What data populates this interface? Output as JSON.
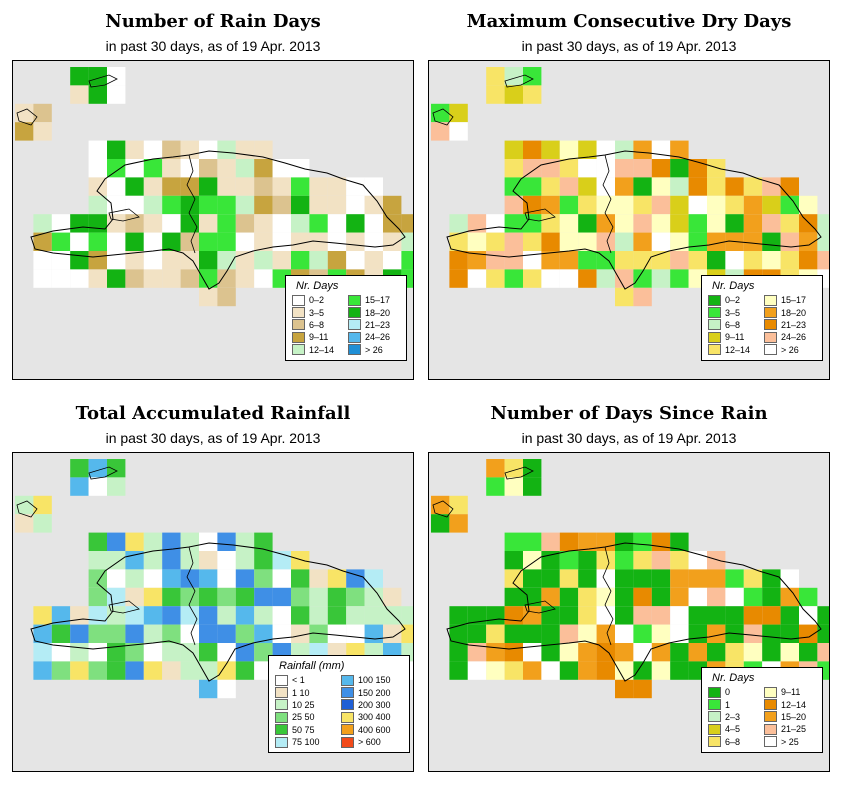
{
  "panels": [
    {
      "title": "Number of Rain Days",
      "subtitle": "in past 30 days, as of  19 Apr. 2013",
      "legend": {
        "title": "Nr. Days",
        "items": [
          {
            "label": "0–2",
            "color": "#ffffff"
          },
          {
            "label": "15–17",
            "color": "#39e639"
          },
          {
            "label": "3–5",
            "color": "#f2e2c4"
          },
          {
            "label": "18–20",
            "color": "#13b313"
          },
          {
            "label": "6–8",
            "color": "#dcc38f"
          },
          {
            "label": "21–23",
            "color": "#b4ecf5"
          },
          {
            "label": "9–11",
            "color": "#c7a43f"
          },
          {
            "label": "24–26",
            "color": "#55b8ec"
          },
          {
            "label": "12–14",
            "color": "#c6f2c6"
          },
          {
            "label": "> 26",
            "color": "#1f8fd6"
          }
        ]
      }
    },
    {
      "title": "Maximum Consecutive Dry Days",
      "subtitle": "in past 30 days, as of  19 Apr. 2013",
      "legend": {
        "title": "Nr. Days",
        "items": [
          {
            "label": "0–2",
            "color": "#13b313"
          },
          {
            "label": "15–17",
            "color": "#ffffc0"
          },
          {
            "label": "3–5",
            "color": "#39e639"
          },
          {
            "label": "18–20",
            "color": "#f2a01c"
          },
          {
            "label": "6–8",
            "color": "#c6f2c6"
          },
          {
            "label": "21–23",
            "color": "#e88a00"
          },
          {
            "label": "9–11",
            "color": "#d9cf1a"
          },
          {
            "label": "24–26",
            "color": "#fbbf9a"
          },
          {
            "label": "12–14",
            "color": "#f8e466"
          },
          {
            "label": "> 26",
            "color": "#ffffff"
          }
        ]
      }
    },
    {
      "title": "Total Accumulated Rainfall",
      "subtitle": "in past 30 days, as of  19 Apr. 2013",
      "legend": {
        "title": "Rainfall (mm)",
        "items": [
          {
            "label": "< 1",
            "color": "#ffffff"
          },
          {
            "label": "100 150",
            "color": "#55b8ec"
          },
          {
            "label": "1  10",
            "color": "#f2e2c4"
          },
          {
            "label": "150 200",
            "color": "#3f8fe6"
          },
          {
            "label": "10  25",
            "color": "#c6f2c6"
          },
          {
            "label": "200 300",
            "color": "#1f5fd6"
          },
          {
            "label": "25  50",
            "color": "#7fe07f"
          },
          {
            "label": "300 400",
            "color": "#f8e466"
          },
          {
            "label": "50  75",
            "color": "#39c639"
          },
          {
            "label": "400 600",
            "color": "#f2a01c"
          },
          {
            "label": "75  100",
            "color": "#b4ecf5"
          },
          {
            "label": "> 600",
            "color": "#f24a1a"
          }
        ]
      }
    },
    {
      "title": "Number of Days Since Rain",
      "subtitle": "in past 30 days, as of  19 Apr. 2013",
      "legend": {
        "title": "Nr. Days",
        "items": [
          {
            "label": "0",
            "color": "#13b313"
          },
          {
            "label": "9–11",
            "color": "#ffffc0"
          },
          {
            "label": "1",
            "color": "#39e639"
          },
          {
            "label": "12–14",
            "color": "#e88a00"
          },
          {
            "label": "2–3",
            "color": "#c6f2c6"
          },
          {
            "label": "15–20",
            "color": "#f2a01c"
          },
          {
            "label": "4–5",
            "color": "#d9cf1a"
          },
          {
            "label": "21–25",
            "color": "#fbbf9a"
          },
          {
            "label": "6–8",
            "color": "#f8e466"
          },
          {
            "label": "> 25",
            "color": "#ffffff"
          }
        ]
      }
    }
  ]
}
